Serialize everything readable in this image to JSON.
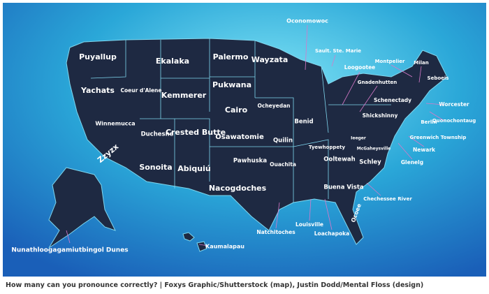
{
  "map": {
    "labels": [
      "Puyallup",
      "Ekalaka",
      "Palermo",
      "Wayzata",
      "Oconomowoc",
      "Sault. Ste. Marie",
      "Montpelier",
      "Milan",
      "Seboeis",
      "Loogootee",
      "Gnadenhutten",
      "Yachats",
      "Coeur d'Alene",
      "Kemmerer",
      "Pukwana",
      "Ocheyedan",
      "Schenectady",
      "Worcester",
      "Quonochontaug",
      "Berlin",
      "Shickshinny",
      "Greenwich Township",
      "Winnemucca",
      "Duchesne",
      "Crested Butte",
      "Cairo",
      "Osawatomie",
      "Benid",
      "Tyewhoppety",
      "Ieeger",
      "McGaheysville",
      "Newark",
      "Glenelg",
      "Zzyzx",
      "Sonoita",
      "Abiquiú",
      "Pawhuska",
      "Quilin",
      "Ooltewah",
      "Schley",
      "Ouachita",
      "Nacogdoches",
      "Buena Vista",
      "Chechessee River",
      "Ocoee",
      "Louisville",
      "Natchitoches",
      "Loachapoka",
      "Kaumalapau",
      "Nunathloogagamiutbingol Dunes"
    ]
  },
  "caption": "How many can you pronounce correctly? | Foxys Graphic/Shutterstock (map), Justin Dodd/Mental Floss (design)"
}
